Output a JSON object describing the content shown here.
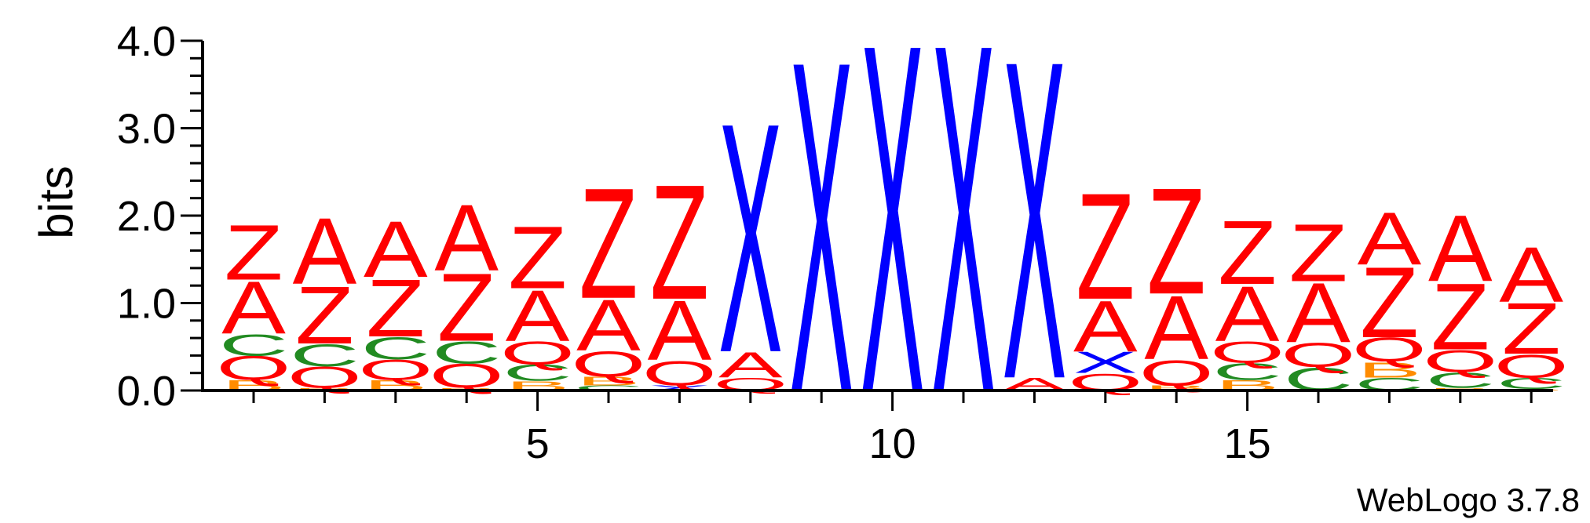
{
  "chart_data": {
    "type": "sequence-logo",
    "ylabel": "bits",
    "ylim": [
      0,
      4.0
    ],
    "y_ticks": [
      0.0,
      1.0,
      2.0,
      3.0,
      4.0
    ],
    "y_tick_labels": [
      "0.0",
      "1.0",
      "2.0",
      "3.0",
      "4.0"
    ],
    "x_ticks": [
      5,
      10,
      15
    ],
    "x_tick_labels": [
      "5",
      "10",
      "15"
    ],
    "positions": [
      1,
      2,
      3,
      4,
      5,
      6,
      7,
      8,
      9,
      10,
      11,
      12,
      13,
      14,
      15,
      16,
      17,
      18,
      19
    ],
    "colors": {
      "A": "#ff0000",
      "Z": "#ff0000",
      "Q": "#ff0000",
      "C": "#228b22",
      "B": "#ff8c00",
      "X": "#0000ff"
    },
    "stacks": [
      [
        {
          "letter": "B",
          "bits": 0.12
        },
        {
          "letter": "Q",
          "bits": 0.28
        },
        {
          "letter": "C",
          "bits": 0.25
        },
        {
          "letter": "A",
          "bits": 0.62
        },
        {
          "letter": "Z",
          "bits": 0.65
        }
      ],
      [
        {
          "letter": "B",
          "bits": 0.03
        },
        {
          "letter": "Q",
          "bits": 0.25
        },
        {
          "letter": "C",
          "bits": 0.26
        },
        {
          "letter": "Z",
          "bits": 0.68
        },
        {
          "letter": "A",
          "bits": 0.78
        }
      ],
      [
        {
          "letter": "B",
          "bits": 0.12
        },
        {
          "letter": "Q",
          "bits": 0.24
        },
        {
          "letter": "C",
          "bits": 0.26
        },
        {
          "letter": "Z",
          "bits": 0.68
        },
        {
          "letter": "A",
          "bits": 0.66
        }
      ],
      [
        {
          "letter": "B",
          "bits": 0.03
        },
        {
          "letter": "Q",
          "bits": 0.28
        },
        {
          "letter": "C",
          "bits": 0.26
        },
        {
          "letter": "Z",
          "bits": 0.8
        },
        {
          "letter": "A",
          "bits": 0.78
        }
      ],
      [
        {
          "letter": "B",
          "bits": 0.11
        },
        {
          "letter": "C",
          "bits": 0.19
        },
        {
          "letter": "Q",
          "bits": 0.27
        },
        {
          "letter": "A",
          "bits": 0.6
        },
        {
          "letter": "Z",
          "bits": 0.73
        }
      ],
      [
        {
          "letter": "C",
          "bits": 0.06
        },
        {
          "letter": "B",
          "bits": 0.1
        },
        {
          "letter": "Q",
          "bits": 0.3
        },
        {
          "letter": "A",
          "bits": 0.6
        },
        {
          "letter": "Z",
          "bits": 1.3
        }
      ],
      [
        {
          "letter": "X",
          "bits": 0.06
        },
        {
          "letter": "Q",
          "bits": 0.29
        },
        {
          "letter": "A",
          "bits": 0.7
        },
        {
          "letter": "Z",
          "bits": 1.35
        }
      ],
      [
        {
          "letter": "Q",
          "bits": 0.15
        },
        {
          "letter": "A",
          "bits": 0.3
        },
        {
          "letter": "X",
          "bits": 2.7
        }
      ],
      [
        {
          "letter": "X",
          "bits": 3.9
        }
      ],
      [
        {
          "letter": "X",
          "bits": 4.1
        }
      ],
      [
        {
          "letter": "X",
          "bits": 4.1
        }
      ],
      [
        {
          "letter": "A",
          "bits": 0.15
        },
        {
          "letter": "X",
          "bits": 3.75
        }
      ],
      [
        {
          "letter": "Q",
          "bits": 0.2
        },
        {
          "letter": "X",
          "bits": 0.25
        },
        {
          "letter": "A",
          "bits": 0.6
        },
        {
          "letter": "Z",
          "bits": 1.25
        }
      ],
      [
        {
          "letter": "B",
          "bits": 0.06
        },
        {
          "letter": "Q",
          "bits": 0.3
        },
        {
          "letter": "A",
          "bits": 0.75
        },
        {
          "letter": "Z",
          "bits": 1.25
        }
      ],
      [
        {
          "letter": "B",
          "bits": 0.12
        },
        {
          "letter": "C",
          "bits": 0.2
        },
        {
          "letter": "Q",
          "bits": 0.25
        },
        {
          "letter": "A",
          "bits": 0.65
        },
        {
          "letter": "Z",
          "bits": 0.75
        }
      ],
      [
        {
          "letter": "C",
          "bits": 0.27
        },
        {
          "letter": "Q",
          "bits": 0.28
        },
        {
          "letter": "A",
          "bits": 0.7
        },
        {
          "letter": "Z",
          "bits": 0.68
        }
      ],
      [
        {
          "letter": "C",
          "bits": 0.15
        },
        {
          "letter": "B",
          "bits": 0.18
        },
        {
          "letter": "Q",
          "bits": 0.28
        },
        {
          "letter": "Z",
          "bits": 0.83
        },
        {
          "letter": "A",
          "bits": 0.62
        }
      ],
      [
        {
          "letter": "B",
          "bits": 0.03
        },
        {
          "letter": "C",
          "bits": 0.18
        },
        {
          "letter": "Q",
          "bits": 0.26
        },
        {
          "letter": "Z",
          "bits": 0.78
        },
        {
          "letter": "A",
          "bits": 0.78
        }
      ],
      [
        {
          "letter": "B",
          "bits": 0.02
        },
        {
          "letter": "C",
          "bits": 0.13
        },
        {
          "letter": "Q",
          "bits": 0.27
        },
        {
          "letter": "Z",
          "bits": 0.6
        },
        {
          "letter": "A",
          "bits": 0.65
        }
      ]
    ]
  },
  "footer": {
    "credit": "WebLogo 3.7.8"
  }
}
